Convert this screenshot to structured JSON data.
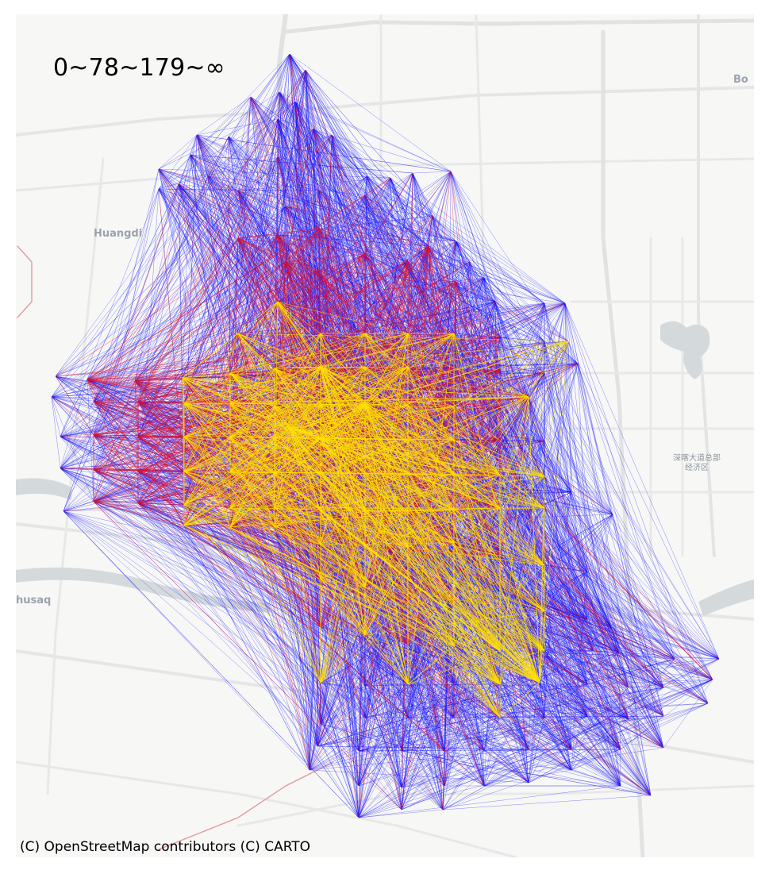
{
  "map": {
    "legend_title": "0~78~179~∞",
    "attribution": "(C) OpenStreetMap contributors (C) CARTO",
    "basemap_labels": {
      "huangdi": "Huangdi",
      "bo": "Bo",
      "husaq": "husaq",
      "district_line1": "深喀大道总部",
      "district_line2": "经济区"
    },
    "layer": {
      "type": "od-flow-lines",
      "classes": [
        {
          "range": "0~78",
          "color": "#1010ff"
        },
        {
          "range": "78~179",
          "color": "#e0102a"
        },
        {
          "range": "179~∞",
          "color": "#ffe000"
        }
      ],
      "basemap": "CARTO light"
    }
  }
}
